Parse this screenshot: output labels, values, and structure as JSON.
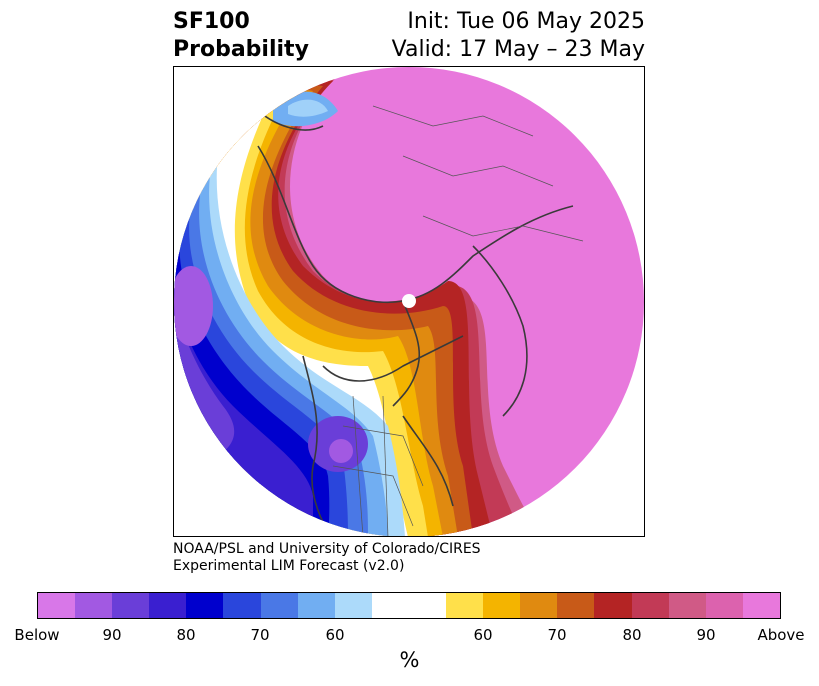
{
  "title": {
    "left_line1": "SF100",
    "left_line2": "Probability",
    "right_line1": "Init: Tue 06 May 2025",
    "right_line2": "Valid: 17 May – 23 May"
  },
  "credit": {
    "line1": "NOAA/PSL and University of Colorado/CIRES",
    "line2": "Experimental LIM Forecast (v2.0)"
  },
  "colorbar": {
    "colors": [
      "#d877e8",
      "#a259e2",
      "#6a3ed8",
      "#3a1fd0",
      "#0000cd",
      "#2a46dc",
      "#4a78e6",
      "#71aef2",
      "#acdafa",
      "#ffffff",
      "#ffffff",
      "#ffe04a",
      "#f4b400",
      "#e08a10",
      "#c85a18",
      "#b42424",
      "#c23a56",
      "#d05a86",
      "#dc62ae",
      "#e878dc"
    ],
    "ticks": [
      "Below",
      "90",
      "80",
      "70",
      "60",
      "60",
      "70",
      "80",
      "90",
      "Above"
    ],
    "unit": "%"
  },
  "icons": [
    "north-pole-marker"
  ]
}
